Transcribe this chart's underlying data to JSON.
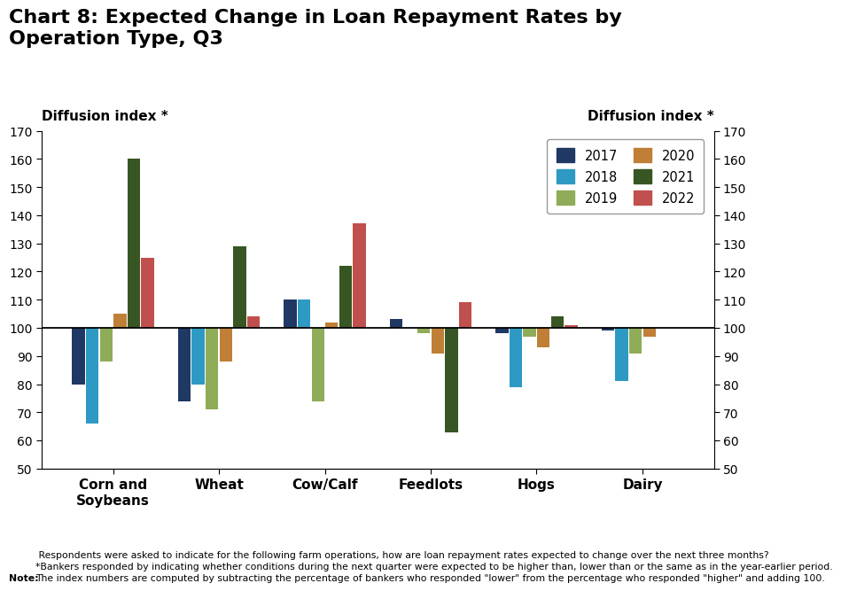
{
  "title": "Chart 8: Expected Change in Loan Repayment Rates by\nOperation Type, Q3",
  "ylabel_left": "Diffusion index *",
  "ylabel_right": "Diffusion index *",
  "ylim": [
    50,
    170
  ],
  "yticks": [
    50,
    60,
    70,
    80,
    90,
    100,
    110,
    120,
    130,
    140,
    150,
    160,
    170
  ],
  "categories": [
    "Corn and\nSoybeans",
    "Wheat",
    "Cow/Calf",
    "Feedlots",
    "Hogs",
    "Dairy"
  ],
  "series": {
    "2017": [
      80,
      74,
      110,
      103,
      98,
      99
    ],
    "2018": [
      66,
      80,
      110,
      100,
      79,
      81
    ],
    "2019": [
      88,
      71,
      74,
      98,
      97,
      91
    ],
    "2020": [
      105,
      88,
      102,
      91,
      93,
      97
    ],
    "2021": [
      160,
      129,
      122,
      63,
      104,
      100
    ],
    "2022": [
      125,
      104,
      137,
      109,
      101,
      100
    ]
  },
  "colors": {
    "2017": "#1f3864",
    "2018": "#2e9ac4",
    "2019": "#8fac58",
    "2020": "#c07f36",
    "2021": "#375623",
    "2022": "#c0504d"
  },
  "baseline": 100,
  "note_bold": "Note:",
  "note_text": " Respondents were asked to indicate for the following farm operations, how are loan repayment rates expected to change over the next three months?\n*Bankers responded by indicating whether conditions during the next quarter were expected to be higher than, lower than or the same as in the year-earlier period.\nThe index numbers are computed by subtracting the percentage of bankers who responded \"lower\" from the percentage who responded \"higher\" and adding 100.",
  "bar_width": 0.13
}
